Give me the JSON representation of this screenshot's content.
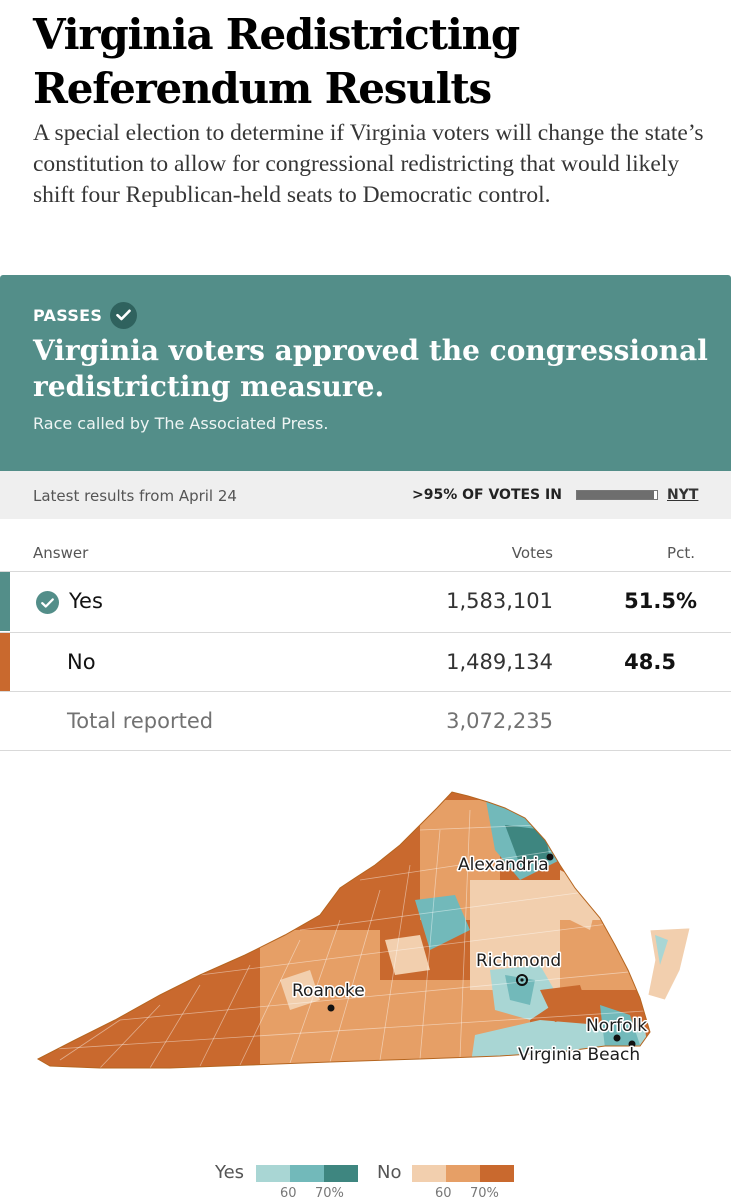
{
  "article": {
    "headline": "Virginia Redistricting Referendum Results",
    "dek": "A special election to determine if Virginia voters will change the state’s constitution to allow for congressional redistricting that would likely shift four Republican-held seats to Democratic control."
  },
  "banner": {
    "status": "PASSES",
    "title": "Virginia voters approved the congressional redistricting measure.",
    "subtitle": "Race called by The Associated Press."
  },
  "status_bar": {
    "latest": "Latest results from April 24",
    "votes_in": ">95% OF VOTES IN",
    "progress_fraction": 0.96,
    "source_link": "NYT"
  },
  "results_table": {
    "headers": {
      "answer": "Answer",
      "votes": "Votes",
      "pct": "Pct."
    },
    "rows": [
      {
        "answer": "Yes",
        "votes": "1,583,101",
        "pct": "51.5%",
        "winner": true,
        "color": "#538e89"
      },
      {
        "answer": "No",
        "votes": "1,489,134",
        "pct": "48.5",
        "winner": false,
        "color": "#c9692e"
      }
    ],
    "total": {
      "label": "Total reported",
      "votes": "3,072,235"
    }
  },
  "map": {
    "cities": [
      "Alexandria",
      "Richmond",
      "Roanoke",
      "Norfolk",
      "Virginia Beach"
    ]
  },
  "legend": {
    "yes_label": "Yes",
    "no_label": "No",
    "yes_colors": [
      "#a9d6d4",
      "#72b9ba",
      "#3e8680"
    ],
    "no_colors": [
      "#f2cfae",
      "#e69f66",
      "#c9692e"
    ],
    "yes_ticks": [
      "60",
      "70%"
    ],
    "no_ticks": [
      "60",
      "70%"
    ]
  },
  "colors": {
    "banner": "#538e89",
    "yes": "#538e89",
    "no": "#c9692e"
  }
}
